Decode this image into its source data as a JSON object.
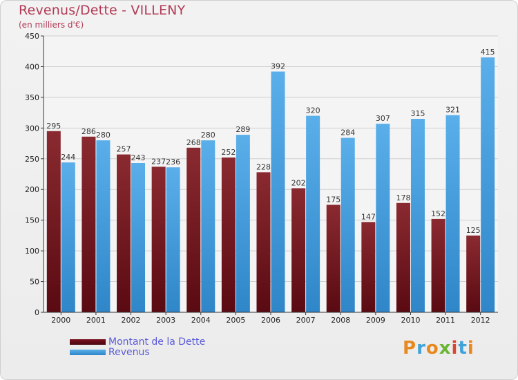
{
  "header": {
    "title": "Revenus/Dette - VILLENY",
    "subtitle": "(en milliers d'€)"
  },
  "chart_data": {
    "type": "bar",
    "title": "Revenus/Dette - VILLENY",
    "subtitle": "(en milliers d'€)",
    "xlabel": "",
    "ylabel": "",
    "ylim": [
      0,
      450
    ],
    "yticks": [
      0,
      50,
      100,
      150,
      200,
      250,
      300,
      350,
      400,
      450
    ],
    "grid": true,
    "categories": [
      "2000",
      "2001",
      "2002",
      "2003",
      "2004",
      "2005",
      "2006",
      "2007",
      "2008",
      "2009",
      "2010",
      "2011",
      "2012"
    ],
    "series": [
      {
        "name": "Montant de la Dette",
        "color": "#7a1020",
        "values": [
          295,
          286,
          257,
          237,
          268,
          252,
          228,
          202,
          175,
          147,
          178,
          152,
          125
        ]
      },
      {
        "name": "Revenus",
        "color": "#3d9be0",
        "values": [
          244,
          280,
          243,
          236,
          280,
          289,
          392,
          320,
          284,
          307,
          315,
          321,
          415
        ]
      }
    ],
    "legend_position": "bottom-left"
  },
  "legend": {
    "items": [
      {
        "label": "Montant de la Dette",
        "color": "#7a1020"
      },
      {
        "label": "Revenus",
        "color": "#3d9be0"
      }
    ]
  },
  "brand": {
    "letters": [
      "P",
      "r",
      "o",
      "x",
      "i",
      "t",
      "i"
    ],
    "colors": [
      "#e8891f",
      "#3fa2d9",
      "#e8891f",
      "#6bb534",
      "#d9472f",
      "#3fa2d9",
      "#e8891f"
    ]
  }
}
